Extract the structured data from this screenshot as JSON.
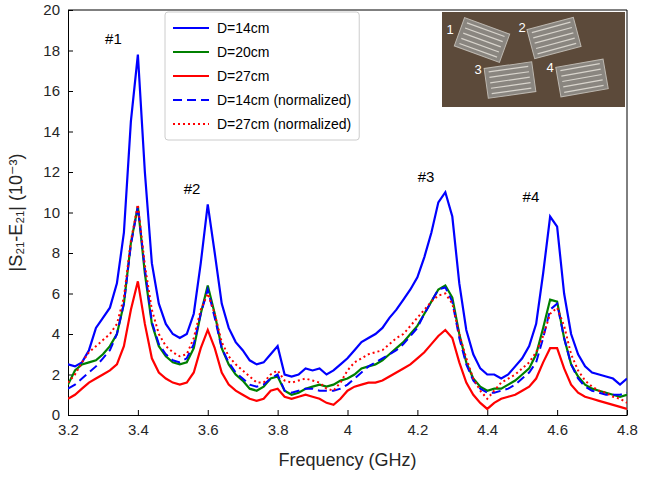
{
  "chart_data": {
    "type": "line",
    "x_label": "Frequency (GHz)",
    "y_label": "|S₂₁-E₂₁| (10⁻³)",
    "xlim": [
      3.2,
      4.8
    ],
    "xticks": [
      3.2,
      3.4,
      3.6,
      3.8,
      4,
      4.2,
      4.4,
      4.6,
      4.8
    ],
    "ylim": [
      0,
      20
    ],
    "yticks": [
      0,
      2,
      4,
      6,
      8,
      10,
      12,
      14,
      16,
      18,
      20
    ],
    "legend": "upper left",
    "x": [
      3.2,
      3.22,
      3.24,
      3.26,
      3.28,
      3.3,
      3.32,
      3.34,
      3.36,
      3.38,
      3.4,
      3.42,
      3.44,
      3.46,
      3.48,
      3.5,
      3.52,
      3.54,
      3.56,
      3.58,
      3.6,
      3.62,
      3.64,
      3.66,
      3.68,
      3.7,
      3.72,
      3.74,
      3.76,
      3.78,
      3.8,
      3.82,
      3.84,
      3.86,
      3.88,
      3.9,
      3.92,
      3.94,
      3.96,
      3.98,
      4,
      4.02,
      4.04,
      4.06,
      4.08,
      4.1,
      4.12,
      4.14,
      4.16,
      4.18,
      4.2,
      4.22,
      4.24,
      4.26,
      4.28,
      4.3,
      4.32,
      4.34,
      4.36,
      4.38,
      4.4,
      4.42,
      4.44,
      4.46,
      4.48,
      4.5,
      4.52,
      4.54,
      4.56,
      4.58,
      4.6,
      4.62,
      4.64,
      4.66,
      4.68,
      4.7,
      4.72,
      4.74,
      4.76,
      4.78,
      4.8
    ],
    "series": [
      {
        "name": "D=14cm",
        "color": "#0000ff",
        "line_style": "solid",
        "values": [
          2.5,
          2.4,
          2.6,
          3.2,
          4.3,
          4.8,
          5.3,
          6.5,
          9.0,
          14.5,
          17.8,
          12.0,
          7.5,
          5.5,
          4.5,
          4.0,
          3.8,
          4.0,
          5.0,
          7.5,
          10.4,
          8.0,
          5.5,
          4.3,
          3.6,
          3.2,
          2.7,
          2.5,
          2.6,
          3.0,
          3.4,
          2.0,
          1.9,
          2.0,
          2.3,
          2.2,
          2.3,
          2.0,
          2.2,
          2.5,
          2.8,
          3.2,
          3.6,
          3.8,
          4.0,
          4.3,
          4.8,
          5.2,
          5.7,
          6.2,
          6.8,
          7.8,
          9.0,
          10.5,
          11.0,
          9.8,
          6.5,
          4.2,
          3.0,
          2.3,
          2.0,
          2.0,
          1.8,
          2.0,
          2.4,
          2.8,
          3.4,
          4.5,
          7.0,
          9.8,
          9.3,
          6.0,
          4.0,
          3.0,
          2.4,
          2.1,
          2.0,
          1.9,
          1.8,
          1.5,
          1.8
        ]
      },
      {
        "name": "D=20cm",
        "color": "#008000",
        "line_style": "solid",
        "values": [
          1.5,
          2.2,
          2.5,
          2.6,
          2.7,
          3.0,
          3.4,
          4.0,
          5.5,
          8.5,
          10.3,
          7.0,
          4.5,
          3.4,
          2.9,
          2.6,
          2.5,
          2.6,
          3.3,
          5.0,
          6.4,
          5.0,
          3.3,
          2.5,
          2.0,
          1.7,
          1.3,
          1.2,
          1.4,
          1.8,
          1.9,
          1.2,
          1.0,
          1.1,
          1.3,
          1.4,
          1.5,
          1.4,
          1.5,
          1.7,
          1.8,
          2.0,
          2.3,
          2.4,
          2.5,
          2.7,
          3.0,
          3.3,
          3.6,
          4.0,
          4.4,
          5.0,
          5.6,
          6.2,
          6.4,
          5.8,
          4.0,
          2.6,
          1.8,
          1.4,
          1.2,
          1.3,
          1.3,
          1.5,
          1.7,
          2.0,
          2.3,
          3.0,
          4.3,
          5.7,
          5.6,
          3.8,
          2.5,
          1.9,
          1.5,
          1.3,
          1.2,
          1.1,
          1.0,
          0.9,
          1.0
        ]
      },
      {
        "name": "D=27cm",
        "color": "#ff0000",
        "line_style": "solid",
        "values": [
          0.8,
          1.0,
          1.3,
          1.6,
          1.8,
          2.0,
          2.2,
          2.5,
          3.4,
          5.2,
          6.6,
          4.5,
          2.8,
          2.1,
          1.8,
          1.6,
          1.5,
          1.6,
          2.1,
          3.3,
          4.2,
          3.3,
          2.1,
          1.5,
          1.2,
          1.0,
          0.8,
          0.7,
          0.8,
          1.2,
          1.3,
          0.9,
          0.8,
          0.9,
          1.0,
          0.9,
          0.8,
          0.6,
          0.5,
          0.8,
          1.2,
          1.4,
          1.5,
          1.6,
          1.6,
          1.7,
          1.9,
          2.1,
          2.3,
          2.5,
          2.8,
          3.1,
          3.5,
          3.9,
          4.2,
          3.8,
          2.6,
          1.6,
          1.0,
          0.6,
          0.3,
          0.6,
          0.8,
          0.9,
          1.0,
          1.2,
          1.4,
          1.8,
          2.6,
          3.3,
          3.3,
          2.3,
          1.5,
          1.1,
          0.9,
          0.8,
          0.7,
          0.6,
          0.5,
          0.4,
          0.3
        ]
      },
      {
        "name": "D=14cm (normalized)",
        "color": "#0000ff",
        "line_style": "dashed",
        "values": [
          1.3,
          1.5,
          1.8,
          2.1,
          2.4,
          2.8,
          3.2,
          4.0,
          5.5,
          8.4,
          10.3,
          7.2,
          4.6,
          3.5,
          3.0,
          2.7,
          2.6,
          2.8,
          3.5,
          5.0,
          6.2,
          4.8,
          3.3,
          2.6,
          2.1,
          1.8,
          1.5,
          1.4,
          1.5,
          1.8,
          2.0,
          1.2,
          1.1,
          1.2,
          1.3,
          1.3,
          1.2,
          1.2,
          1.2,
          1.3,
          1.5,
          1.8,
          2.1,
          2.4,
          2.6,
          2.8,
          3.0,
          3.2,
          3.5,
          3.9,
          4.3,
          5.0,
          5.6,
          6.2,
          6.3,
          5.6,
          3.8,
          2.5,
          1.7,
          1.3,
          1.1,
          1.1,
          1.2,
          1.3,
          1.5,
          1.8,
          2.1,
          2.6,
          3.8,
          5.2,
          5.5,
          3.8,
          2.5,
          1.8,
          1.4,
          1.2,
          1.1,
          1.0,
          1.0,
          1.0,
          1.1
        ]
      },
      {
        "name": "D=27cm (normalized)",
        "color": "#ff0000",
        "line_style": "dotted",
        "values": [
          1.6,
          2.0,
          2.6,
          3.1,
          3.4,
          3.7,
          4.0,
          4.5,
          5.8,
          8.6,
          10.4,
          7.4,
          5.2,
          4.0,
          3.4,
          3.1,
          2.9,
          3.0,
          3.8,
          5.2,
          6.0,
          5.0,
          3.6,
          2.9,
          2.5,
          2.2,
          1.9,
          1.6,
          1.6,
          2.0,
          2.2,
          1.7,
          1.6,
          1.7,
          1.8,
          1.7,
          1.6,
          1.3,
          1.2,
          1.6,
          2.2,
          2.6,
          2.8,
          3.0,
          3.1,
          3.2,
          3.5,
          3.8,
          4.0,
          4.4,
          4.8,
          5.2,
          5.6,
          5.9,
          6.0,
          5.5,
          4.0,
          2.8,
          1.8,
          1.2,
          0.8,
          1.2,
          1.6,
          1.8,
          2.0,
          2.3,
          2.6,
          3.1,
          3.9,
          5.0,
          5.3,
          4.4,
          3.0,
          2.2,
          1.7,
          1.4,
          1.2,
          1.1,
          0.9,
          0.8,
          0.6
        ]
      }
    ],
    "annotations": [
      {
        "text": "#1",
        "x": 3.33,
        "y": 18.3
      },
      {
        "text": "#2",
        "x": 3.555,
        "y": 10.9
      },
      {
        "text": "#3",
        "x": 4.225,
        "y": 11.5
      },
      {
        "text": "#4",
        "x": 4.525,
        "y": 10.5
      }
    ],
    "inset": {
      "labels": [
        "1",
        "2",
        "3",
        "4"
      ]
    }
  }
}
